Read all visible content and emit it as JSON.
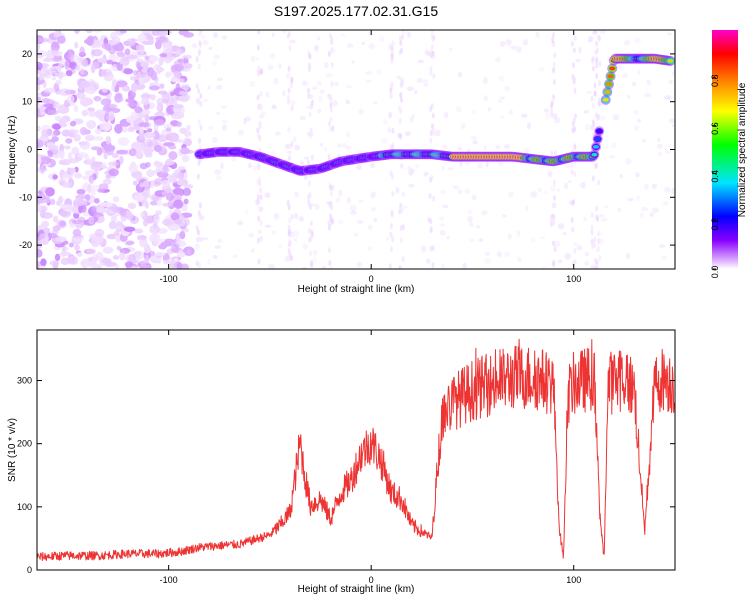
{
  "title": "S197.2025.177.02.31.G15",
  "chart_data": [
    {
      "type": "heatmap",
      "xlabel": "Height of straight line (km)",
      "ylabel": "Frequency (Hz)",
      "xlim": [
        -165,
        150
      ],
      "ylim": [
        -25,
        25
      ],
      "xticks": [
        -100,
        0,
        100
      ],
      "yticks": [
        -20,
        -10,
        0,
        10,
        20
      ],
      "grid": false,
      "colorbar": {
        "label": "Normalized spectral amplitude",
        "range": [
          0,
          1
        ],
        "ticks": [
          0.0,
          0.2,
          0.4,
          0.6,
          0.8
        ],
        "colormap": [
          "#ffffff",
          "#d9a6ff",
          "#8800ff",
          "#0000ff",
          "#00e5ff",
          "#00ff00",
          "#ffff00",
          "#ff8800",
          "#ff0000",
          "#ff00cc"
        ]
      },
      "ridge": {
        "x": [
          -85,
          -75,
          -65,
          -55,
          -45,
          -35,
          -25,
          -15,
          0,
          10,
          20,
          30,
          40,
          50,
          60,
          70,
          80,
          90,
          100,
          110,
          120,
          130,
          140,
          148
        ],
        "y": [
          -1,
          -0.5,
          -0.5,
          -1.5,
          -3,
          -4.5,
          -4,
          -2.5,
          -1.5,
          -1,
          -1,
          -1,
          -1.5,
          -1.5,
          -1.5,
          -1.5,
          -2,
          -2.5,
          -1.5,
          -1.5,
          19,
          19,
          19,
          18.5
        ]
      }
    },
    {
      "type": "line",
      "xlabel": "Height of straight line (km)",
      "ylabel": "SNR (10 * v/v)",
      "xlim": [
        -165,
        150
      ],
      "ylim": [
        0,
        380
      ],
      "xticks": [
        -100,
        0,
        100
      ],
      "yticks": [
        0,
        100,
        200,
        300
      ],
      "grid": false,
      "color": "#ee3333",
      "series": [
        {
          "x": [
            -165,
            -150,
            -135,
            -120,
            -105,
            -95,
            -85,
            -75,
            -65,
            -60,
            -55,
            -50,
            -45,
            -40,
            -35,
            -33,
            -30,
            -25,
            -20,
            -15,
            -10,
            -5,
            0,
            5,
            10,
            15,
            20,
            25,
            30,
            33,
            35,
            40,
            50,
            60,
            70,
            80,
            90,
            93,
            95,
            97,
            100,
            110,
            113,
            115,
            117,
            125,
            130,
            135,
            140,
            145,
            148
          ],
          "y": [
            20,
            22,
            22,
            25,
            25,
            28,
            35,
            38,
            40,
            45,
            50,
            55,
            70,
            90,
            200,
            150,
            100,
            110,
            80,
            120,
            140,
            180,
            200,
            170,
            120,
            110,
            70,
            60,
            50,
            170,
            240,
            260,
            280,
            290,
            300,
            300,
            290,
            60,
            20,
            270,
            290,
            300,
            80,
            20,
            290,
            300,
            280,
            60,
            290,
            300,
            290
          ]
        }
      ]
    }
  ]
}
